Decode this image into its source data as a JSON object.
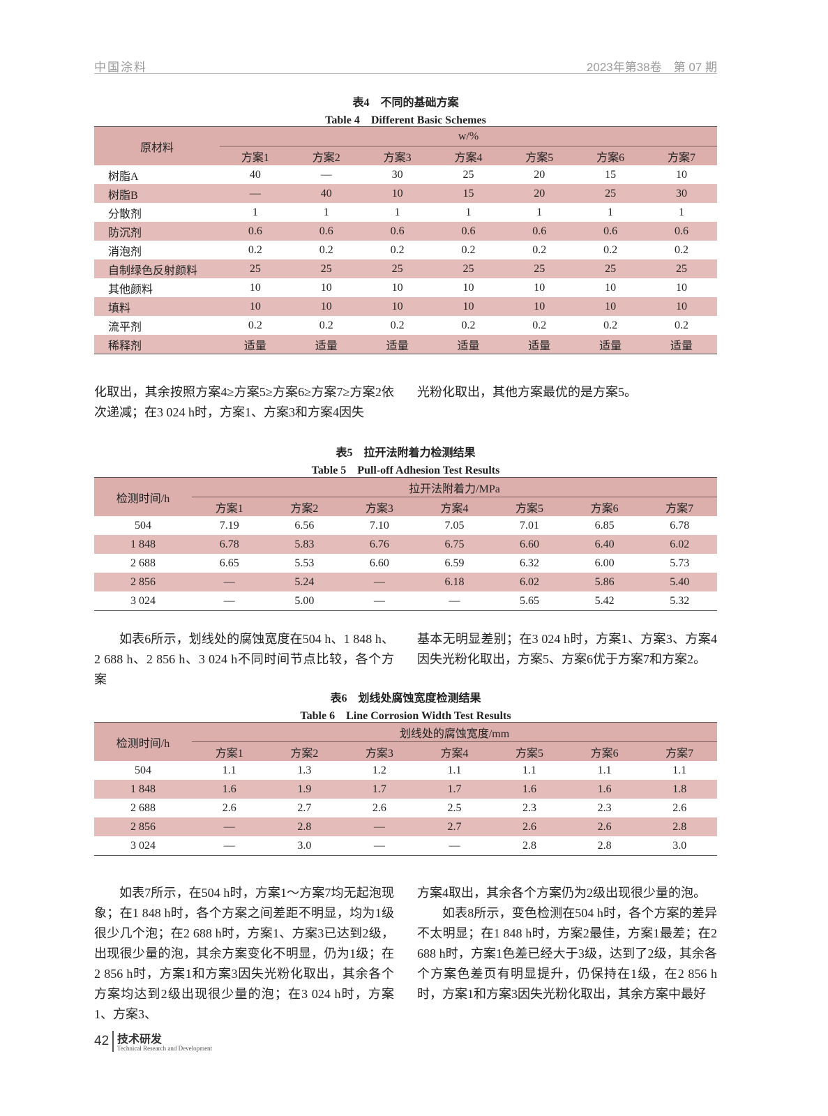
{
  "header": {
    "journal": "中国涂料",
    "issue": "2023年第38卷　第 07 期"
  },
  "table4": {
    "caption_cn": "表4　不同的基础方案",
    "caption_en": "Table 4　Different Basic Schemes",
    "header": {
      "first": "原材料",
      "group": "w/%",
      "columns": [
        "方案1",
        "方案2",
        "方案3",
        "方案4",
        "方案5",
        "方案6",
        "方案7"
      ]
    },
    "rows": [
      [
        "树脂A",
        "40",
        "—",
        "30",
        "25",
        "20",
        "15",
        "10"
      ],
      [
        "树脂B",
        "—",
        "40",
        "10",
        "15",
        "20",
        "25",
        "30"
      ],
      [
        "分散剂",
        "1",
        "1",
        "1",
        "1",
        "1",
        "1",
        "1"
      ],
      [
        "防沉剂",
        "0.6",
        "0.6",
        "0.6",
        "0.6",
        "0.6",
        "0.6",
        "0.6"
      ],
      [
        "消泡剂",
        "0.2",
        "0.2",
        "0.2",
        "0.2",
        "0.2",
        "0.2",
        "0.2"
      ],
      [
        "自制绿色反射颜料",
        "25",
        "25",
        "25",
        "25",
        "25",
        "25",
        "25"
      ],
      [
        "其他颜料",
        "10",
        "10",
        "10",
        "10",
        "10",
        "10",
        "10"
      ],
      [
        "填料",
        "10",
        "10",
        "10",
        "10",
        "10",
        "10",
        "10"
      ],
      [
        "流平剂",
        "0.2",
        "0.2",
        "0.2",
        "0.2",
        "0.2",
        "0.2",
        "0.2"
      ],
      [
        "稀释剂",
        "适量",
        "适量",
        "适量",
        "适量",
        "适量",
        "适量",
        "适量"
      ]
    ]
  },
  "text1": {
    "left": [
      "化取出，其余按照方案4≥方案5≥方案6≥方案7≥方案2依次递减；在3 024 h时，方案1、方案3和方案4因失"
    ],
    "right": [
      "光粉化取出，其他方案最优的是方案5。"
    ]
  },
  "table5": {
    "caption_cn": "表5　拉开法附着力检测结果",
    "caption_en": "Table 5　Pull-off Adhesion Test Results",
    "header": {
      "first": "检测时间/h",
      "group": "拉开法附着力/MPa",
      "columns": [
        "方案1",
        "方案2",
        "方案3",
        "方案4",
        "方案5",
        "方案6",
        "方案7"
      ]
    },
    "rows": [
      [
        "504",
        "7.19",
        "6.56",
        "7.10",
        "7.05",
        "7.01",
        "6.85",
        "6.78"
      ],
      [
        "1 848",
        "6.78",
        "5.83",
        "6.76",
        "6.75",
        "6.60",
        "6.40",
        "6.02"
      ],
      [
        "2 688",
        "6.65",
        "5.53",
        "6.60",
        "6.59",
        "6.32",
        "6.00",
        "5.73"
      ],
      [
        "2 856",
        "—",
        "5.24",
        "—",
        "6.18",
        "6.02",
        "5.86",
        "5.40"
      ],
      [
        "3 024",
        "—",
        "5.00",
        "—",
        "—",
        "5.65",
        "5.42",
        "5.32"
      ]
    ]
  },
  "text2": {
    "left": [
      "如表6所示，划线处的腐蚀宽度在504 h、1 848 h、2 688 h、2 856 h、3 024 h不同时间节点比较，各个方案"
    ],
    "right": [
      "基本无明显差别；在3 024 h时，方案1、方案3、方案4因失光粉化取出，方案5、方案6优于方案7和方案2。"
    ]
  },
  "table6": {
    "caption_cn": "表6　划线处腐蚀宽度检测结果",
    "caption_en": "Table 6　Line Corrosion Width Test Results",
    "header": {
      "first": "检测时间/h",
      "group": "划线处的腐蚀宽度/mm",
      "columns": [
        "方案1",
        "方案2",
        "方案3",
        "方案4",
        "方案5",
        "方案6",
        "方案7"
      ]
    },
    "rows": [
      [
        "504",
        "1.1",
        "1.3",
        "1.2",
        "1.1",
        "1.1",
        "1.1",
        "1.1"
      ],
      [
        "1 848",
        "1.6",
        "1.9",
        "1.7",
        "1.7",
        "1.6",
        "1.6",
        "1.8"
      ],
      [
        "2 688",
        "2.6",
        "2.7",
        "2.6",
        "2.5",
        "2.3",
        "2.3",
        "2.6"
      ],
      [
        "2 856",
        "—",
        "2.8",
        "—",
        "2.7",
        "2.6",
        "2.6",
        "2.8"
      ],
      [
        "3 024",
        "—",
        "3.0",
        "—",
        "—",
        "2.8",
        "2.8",
        "3.0"
      ]
    ]
  },
  "text3": {
    "left": [
      "如表7所示，在504 h时，方案1～方案7均无起泡现象；在1 848 h时，各个方案之间差距不明显，均为1级很少几个泡；在2 688 h时，方案1、方案3已达到2级，出现很少量的泡，其余方案变化不明显，仍为1级；在2 856 h时，方案1和方案3因失光粉化取出，其余各个方案均达到2级出现很少量的泡；在3 024 h时，方案1、方案3、"
    ],
    "right": [
      "方案4取出，其余各个方案仍为2级出现很少量的泡。",
      "如表8所示，变色检测在504 h时，各个方案的差异不太明显；在1 848 h时，方案2最佳，方案1最差；在2 688 h时，方案1色差已经大于3级，达到了2级，其余各个方案色差页有明显提升，仍保持在1级，在2 856 h时，方案1和方案3因失光粉化取出，其余方案中最好"
    ]
  },
  "footer": {
    "page": "42",
    "section": "技术研发",
    "section_en": "Technical Research and Development"
  }
}
